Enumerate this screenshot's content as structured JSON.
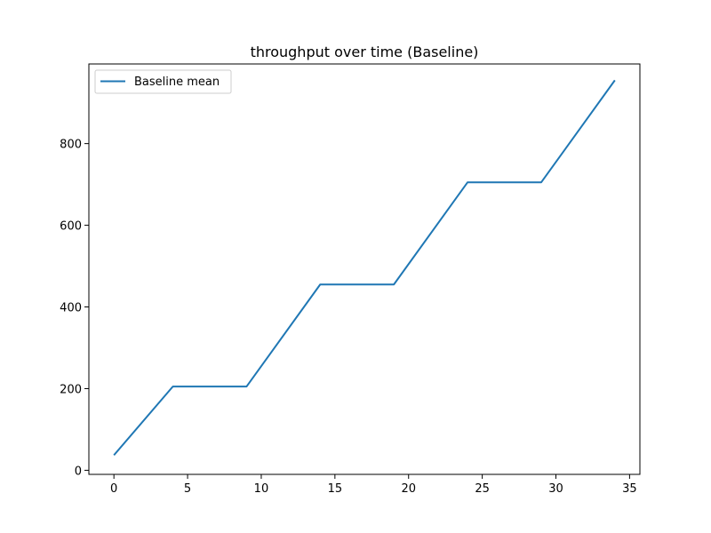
{
  "chart_data": {
    "type": "line",
    "title": "throughput over time (Baseline)",
    "xlabel": "",
    "ylabel": "",
    "xlim": [
      -1.7,
      35.7
    ],
    "ylim": [
      -10,
      995
    ],
    "xticks": [
      0,
      5,
      10,
      15,
      20,
      25,
      30,
      35
    ],
    "yticks": [
      0,
      200,
      400,
      600,
      800
    ],
    "grid": false,
    "legend_position": "upper-left",
    "series": [
      {
        "name": "Baseline mean",
        "color": "#1f77b4",
        "points": [
          [
            0,
            37
          ],
          [
            4,
            205
          ],
          [
            9,
            205
          ],
          [
            14,
            455
          ],
          [
            19,
            455
          ],
          [
            24,
            705
          ],
          [
            29,
            705
          ],
          [
            34,
            955
          ]
        ]
      }
    ]
  }
}
